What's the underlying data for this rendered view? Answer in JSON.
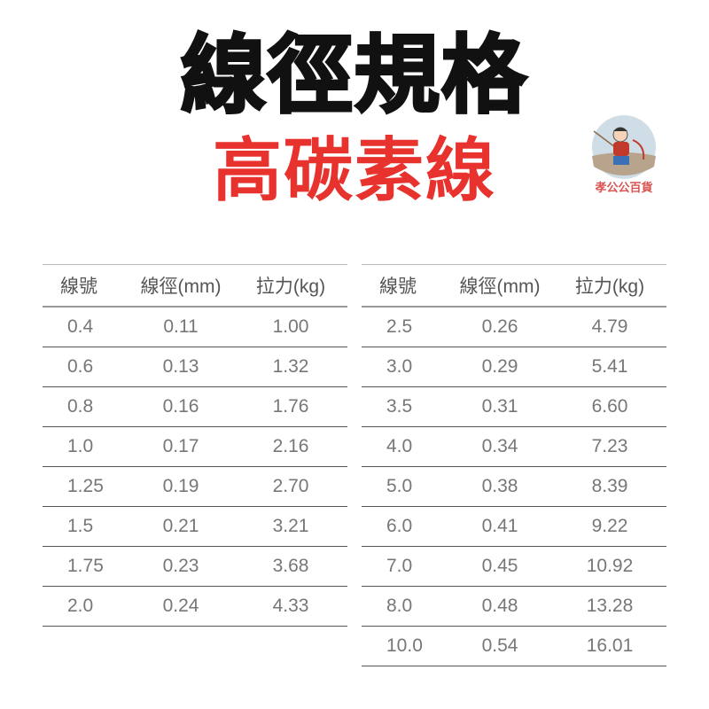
{
  "title": "線徑規格",
  "subtitle": "高碳素線",
  "colors": {
    "title": "#111111",
    "subtitle": "#e8322e",
    "logo_text": "#d9534f"
  },
  "logo": {
    "text": "孝公公百貨",
    "icon": "fisherman-mascot-icon"
  },
  "headers": [
    "線號",
    "線徑(mm)",
    "拉力(kg)"
  ],
  "left_table": [
    [
      "0.4",
      "0.11",
      "1.00"
    ],
    [
      "0.6",
      "0.13",
      "1.32"
    ],
    [
      "0.8",
      "0.16",
      "1.76"
    ],
    [
      "1.0",
      "0.17",
      "2.16"
    ],
    [
      "1.25",
      "0.19",
      "2.70"
    ],
    [
      "1.5",
      "0.21",
      "3.21"
    ],
    [
      "1.75",
      "0.23",
      "3.68"
    ],
    [
      "2.0",
      "0.24",
      "4.33"
    ]
  ],
  "right_table": [
    [
      "2.5",
      "0.26",
      "4.79"
    ],
    [
      "3.0",
      "0.29",
      "5.41"
    ],
    [
      "3.5",
      "0.31",
      "6.60"
    ],
    [
      "4.0",
      "0.34",
      "7.23"
    ],
    [
      "5.0",
      "0.38",
      "8.39"
    ],
    [
      "6.0",
      "0.41",
      "9.22"
    ],
    [
      "7.0",
      "0.45",
      "10.92"
    ],
    [
      "8.0",
      "0.48",
      "13.28"
    ],
    [
      "10.0",
      "0.54",
      "16.01"
    ]
  ]
}
